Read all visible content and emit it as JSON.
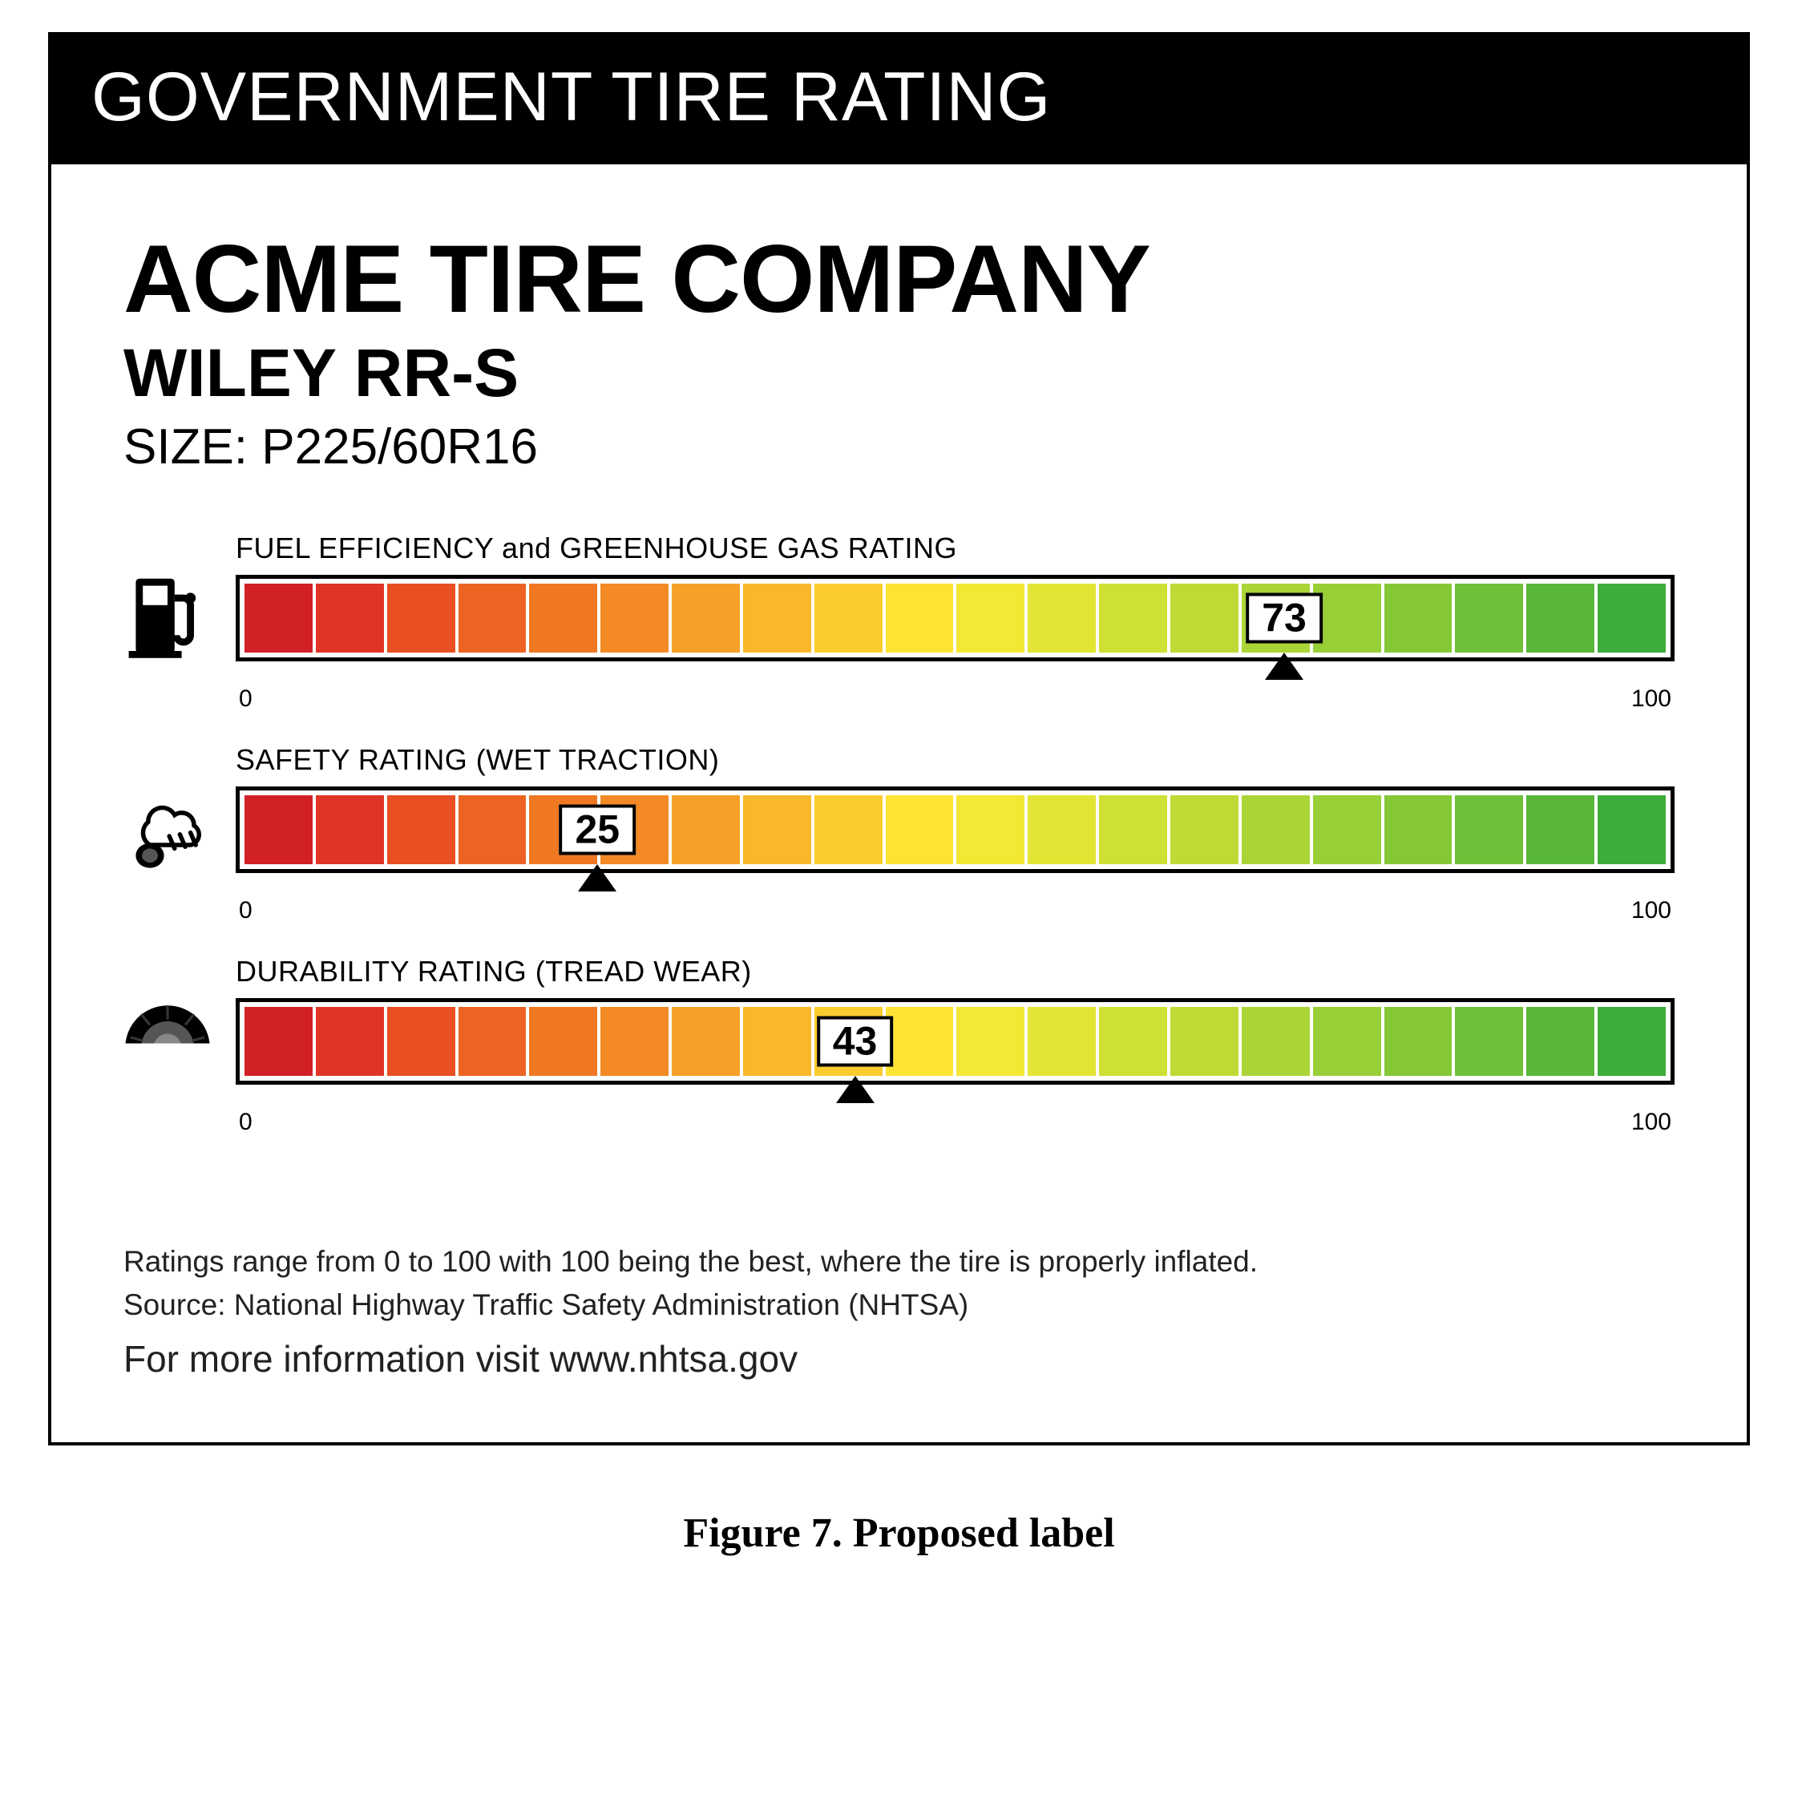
{
  "header": {
    "title": "GOVERNMENT TIRE RATING"
  },
  "product": {
    "company": "ACME TIRE COMPANY",
    "model": "WILEY RR-S",
    "size_label": "SIZE: P225/60R16"
  },
  "ratings_common": {
    "scale_min": 0,
    "scale_max": 100,
    "segments": 20,
    "segment_colors": [
      "#d22027",
      "#e03526",
      "#e84f22",
      "#ed6422",
      "#f07823",
      "#f38a25",
      "#f6a028",
      "#f9b72c",
      "#fccc2f",
      "#fde433",
      "#f3e833",
      "#e2e534",
      "#cfe034",
      "#bedb35",
      "#abd536",
      "#98cf37",
      "#84c838",
      "#6fc039",
      "#58b73a",
      "#3fad3b"
    ],
    "border_color": "#000000",
    "background": "#ffffff"
  },
  "ratings": [
    {
      "id": "fuel",
      "icon": "fuel-pump-icon",
      "title": "FUEL EFFICIENCY and GREENHOUSE GAS RATING",
      "value": 73
    },
    {
      "id": "safety",
      "icon": "wet-cloud-icon",
      "title": "SAFETY RATING (WET TRACTION)",
      "value": 25
    },
    {
      "id": "durability",
      "icon": "tire-icon",
      "title": "DURABILITY RATING (TREAD WEAR)",
      "value": 43
    }
  ],
  "footnotes": {
    "range_text": "Ratings range from 0 to 100 with 100 being the best, where the tire is properly inflated.",
    "source_text": "Source: National Highway Traffic Safety Administration (NHTSA)",
    "info_text": "For more information visit www.nhtsa.gov"
  },
  "caption": "Figure 7.  Proposed label"
}
